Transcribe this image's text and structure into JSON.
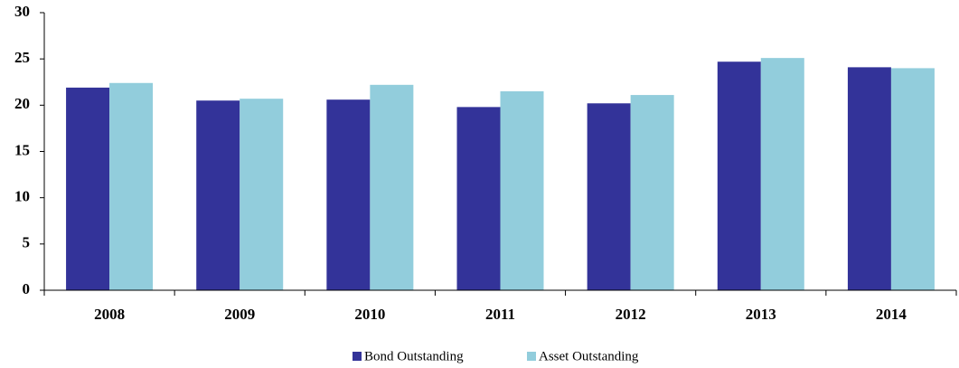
{
  "chart_data": {
    "type": "bar",
    "categories": [
      "2008",
      "2009",
      "2010",
      "2011",
      "2012",
      "2013",
      "2014"
    ],
    "series": [
      {
        "name": "Bond Outstanding",
        "color": "#333399",
        "values": [
          21.9,
          20.5,
          20.6,
          19.8,
          20.2,
          24.7,
          24.1
        ]
      },
      {
        "name": "Asset Outstanding",
        "color": "#92cddc",
        "values": [
          22.4,
          20.7,
          22.2,
          21.5,
          21.1,
          25.1,
          24.0
        ]
      }
    ],
    "ylim": [
      0,
      30
    ],
    "yticks": [
      0,
      5,
      10,
      15,
      20,
      25,
      30
    ],
    "grid": false,
    "legend": "bottom"
  }
}
